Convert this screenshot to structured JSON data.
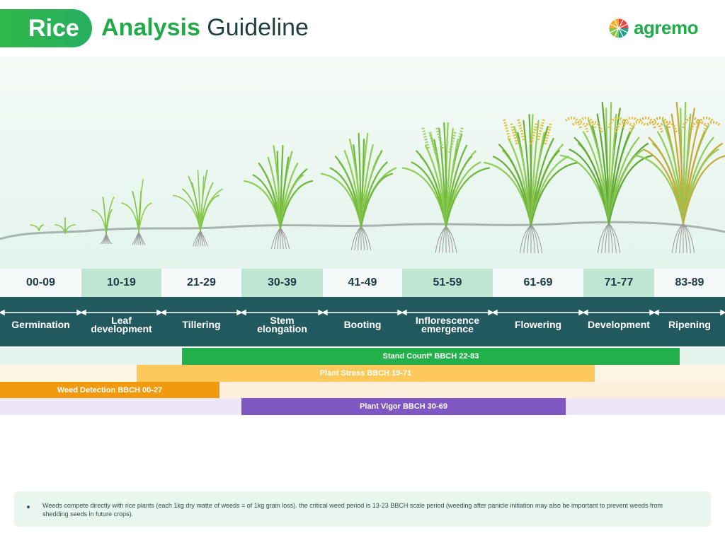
{
  "header": {
    "crop": "Rice",
    "title_accent": "Analysis",
    "title_rest": " Guideline",
    "brand": "agremo"
  },
  "colors": {
    "green": "#2fb84a",
    "dark_teal": "#235a5f",
    "stand_count": "#22b04a",
    "plant_stress": "#fdc95a",
    "weed_detection": "#f29a0e",
    "plant_vigor": "#7e57c2"
  },
  "growth_codes": [
    "00-09",
    "10-19",
    "21-29",
    "30-39",
    "41-49",
    "51-59",
    "61-69",
    "71-77",
    "83-89"
  ],
  "stages": [
    {
      "label": "Germination"
    },
    {
      "label": "Leaf development"
    },
    {
      "label": "Tillering"
    },
    {
      "label": "Stem elongation"
    },
    {
      "label": "Booting"
    },
    {
      "label": "Inflorescence emergence"
    },
    {
      "label": "Flowering"
    },
    {
      "label": "Development"
    },
    {
      "label": "Ripening"
    }
  ],
  "analyses": [
    {
      "label": "Stand Count* BBCH 22-83",
      "bbch_range": [
        22,
        83
      ],
      "icon": "stand-count"
    },
    {
      "label": "Plant Stress BBCH 19-71",
      "bbch_range": [
        19,
        71
      ],
      "icon": "plant-stress"
    },
    {
      "label": "Weed Detection BBCH 00-27",
      "bbch_range": [
        0,
        27
      ],
      "icon": "weed-detection"
    },
    {
      "label": "Plant Vigor BBCH 30-69",
      "bbch_range": [
        30,
        69
      ],
      "icon": "plant-vigor"
    }
  ],
  "note": "Weeds compete directly with rice plants (each 1kg dry matte of weeds = of 1kg grain loss). the critical weed period is 13-23 BBCH scale period (weeding after panicle initiation may also be important to prevent weeds from shedding seeds in future crops)."
}
